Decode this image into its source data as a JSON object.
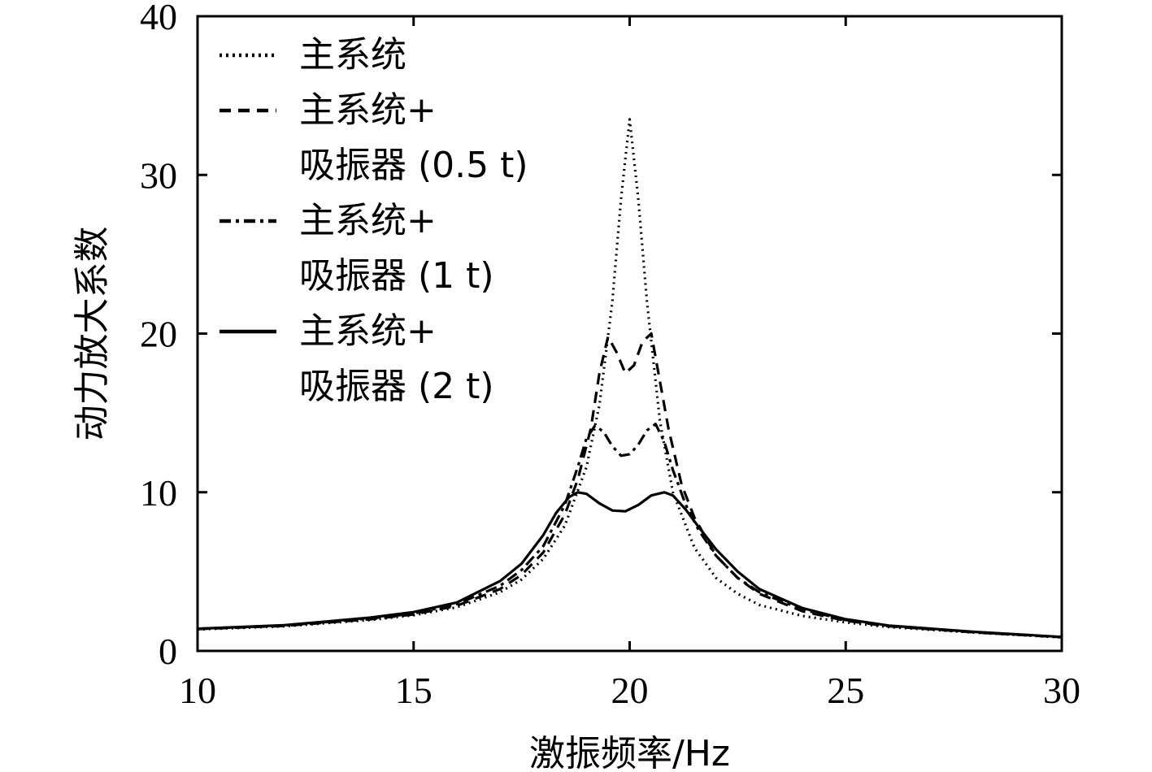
{
  "chart_data": {
    "type": "line",
    "title": "",
    "xlabel": "激振频率/Hz",
    "ylabel": "动力放大系数",
    "xlim": [
      10,
      30
    ],
    "ylim": [
      0,
      40
    ],
    "xticks": [
      10,
      15,
      20,
      25,
      30
    ],
    "yticks": [
      0,
      10,
      20,
      30,
      40
    ],
    "x_tick_labels": [
      "10",
      "15",
      "20",
      "25",
      "30"
    ],
    "y_tick_labels": [
      "0",
      "10",
      "20",
      "30",
      "40"
    ],
    "grid": false,
    "legend_position": "top-left",
    "series": [
      {
        "name": "主系统",
        "name_lines": [
          "主系统"
        ],
        "style": "dotted",
        "x": [
          10,
          12,
          14,
          15,
          16,
          17,
          17.5,
          18,
          18.5,
          19,
          19.3,
          19.6,
          19.8,
          20,
          20.2,
          20.4,
          20.7,
          21,
          21.5,
          22,
          22.5,
          23,
          24,
          25,
          26,
          28,
          30
        ],
        "y": [
          1.35,
          1.55,
          1.95,
          2.25,
          2.75,
          3.7,
          4.5,
          5.8,
          7.9,
          11.6,
          15.5,
          22.0,
          28.5,
          33.5,
          28.5,
          22.0,
          14.5,
          10.0,
          6.5,
          4.6,
          3.6,
          2.9,
          2.2,
          1.8,
          1.5,
          1.15,
          0.85
        ]
      },
      {
        "name": "主系统+ 吸振器 (0.5 t)",
        "name_lines": [
          "主系统+",
          "吸振器 (0.5 t)"
        ],
        "style": "dashed",
        "x": [
          10,
          12,
          14,
          15,
          16,
          17,
          17.5,
          18,
          18.5,
          18.8,
          19.1,
          19.3,
          19.5,
          19.7,
          19.9,
          20.1,
          20.3,
          20.5,
          20.7,
          20.9,
          21.2,
          21.5,
          22,
          22.5,
          23,
          24,
          25,
          26,
          28,
          30
        ],
        "y": [
          1.38,
          1.58,
          2.0,
          2.3,
          2.85,
          3.9,
          4.8,
          6.2,
          8.6,
          10.8,
          14.0,
          17.5,
          19.8,
          18.8,
          17.5,
          18.0,
          19.5,
          20.0,
          17.0,
          14.0,
          10.5,
          8.4,
          6.0,
          4.6,
          3.6,
          2.5,
          1.9,
          1.55,
          1.17,
          0.87
        ]
      },
      {
        "name": "主系统+ 吸振器 (1 t)",
        "name_lines": [
          "主系统+",
          "吸振器 (1 t)"
        ],
        "style": "dashdot",
        "x": [
          10,
          12,
          14,
          15,
          16,
          17,
          17.5,
          18,
          18.5,
          18.8,
          19.0,
          19.2,
          19.4,
          19.6,
          19.8,
          20.0,
          20.2,
          20.4,
          20.6,
          20.8,
          21.0,
          21.3,
          21.6,
          22,
          22.5,
          23,
          24,
          25,
          26,
          28,
          30
        ],
        "y": [
          1.4,
          1.6,
          2.05,
          2.35,
          2.95,
          4.1,
          5.1,
          6.6,
          9.2,
          11.6,
          13.4,
          14.2,
          13.8,
          12.9,
          12.3,
          12.4,
          13.0,
          13.9,
          14.3,
          13.2,
          11.4,
          9.2,
          7.6,
          6.0,
          4.6,
          3.7,
          2.6,
          1.95,
          1.57,
          1.18,
          0.87
        ]
      },
      {
        "name": "主系统+ 吸振器 (2 t)",
        "name_lines": [
          "主系统+",
          "吸振器 (2 t)"
        ],
        "style": "solid",
        "x": [
          10,
          12,
          14,
          15,
          16,
          17,
          17.5,
          18,
          18.3,
          18.6,
          18.8,
          19.0,
          19.3,
          19.6,
          19.9,
          20.2,
          20.5,
          20.8,
          21.0,
          21.3,
          21.6,
          22,
          22.5,
          23,
          24,
          25,
          26,
          28,
          30
        ],
        "y": [
          1.4,
          1.62,
          2.1,
          2.45,
          3.05,
          4.4,
          5.5,
          7.3,
          8.7,
          9.7,
          10.0,
          9.9,
          9.3,
          8.85,
          8.8,
          9.2,
          9.8,
          10.0,
          9.8,
          8.9,
          7.8,
          6.4,
          5.0,
          3.9,
          2.7,
          2.0,
          1.6,
          1.2,
          0.88
        ]
      }
    ]
  }
}
